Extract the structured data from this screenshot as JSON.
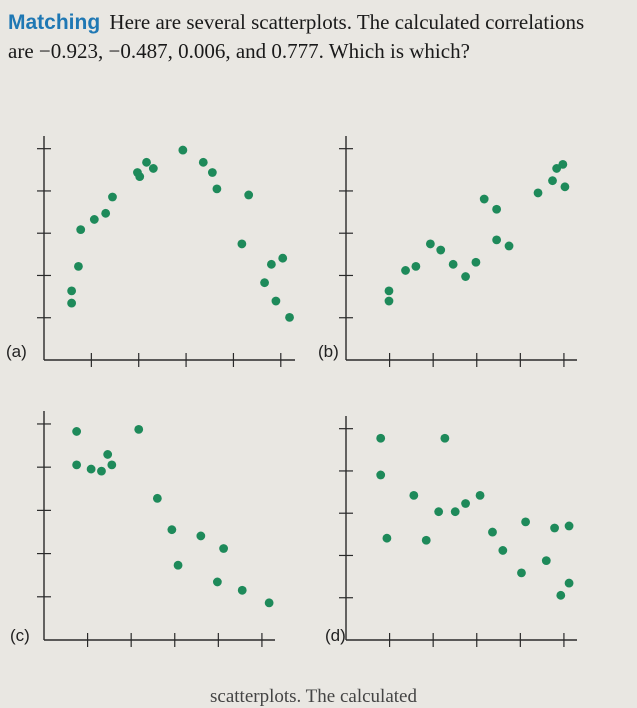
{
  "problem": {
    "lead": "Matching",
    "text": "Here are several scatterplots. The calculated correlations are −0.923, −0.487, 0.006, and 0.777. Which is which?"
  },
  "footer": {
    "text": "scatterplots. The calculated"
  },
  "colors": {
    "accent": "#1f78b4",
    "point": "#1e8a5a",
    "axis": "#2a2a2a"
  },
  "chart_data": [
    {
      "type": "scatter",
      "label": "(a)",
      "xlim": [
        0,
        10
      ],
      "ylim": [
        0,
        10
      ],
      "points": [
        [
          0.6,
          2.3
        ],
        [
          0.6,
          2.9
        ],
        [
          0.9,
          4.1
        ],
        [
          1.0,
          5.9
        ],
        [
          1.6,
          6.4
        ],
        [
          2.1,
          6.7
        ],
        [
          2.4,
          7.5
        ],
        [
          3.5,
          8.7
        ],
        [
          3.6,
          8.5
        ],
        [
          3.9,
          9.2
        ],
        [
          4.2,
          8.9
        ],
        [
          5.5,
          9.8
        ],
        [
          6.4,
          9.2
        ],
        [
          6.8,
          8.7
        ],
        [
          7.0,
          7.9
        ],
        [
          8.4,
          7.6
        ],
        [
          8.1,
          5.2
        ],
        [
          9.4,
          4.2
        ],
        [
          9.9,
          4.5
        ],
        [
          9.1,
          3.3
        ],
        [
          9.6,
          2.4
        ],
        [
          10.2,
          1.6
        ]
      ]
    },
    {
      "type": "scatter",
      "label": "(b)",
      "xlim": [
        0,
        10
      ],
      "ylim": [
        0,
        10
      ],
      "points": [
        [
          1.4,
          2.4
        ],
        [
          1.4,
          2.9
        ],
        [
          2.2,
          3.9
        ],
        [
          2.7,
          4.1
        ],
        [
          3.4,
          5.2
        ],
        [
          3.9,
          4.9
        ],
        [
          4.5,
          4.2
        ],
        [
          5.1,
          3.6
        ],
        [
          5.6,
          4.3
        ],
        [
          6.6,
          6.9
        ],
        [
          6.6,
          5.4
        ],
        [
          7.2,
          5.1
        ],
        [
          6.0,
          7.4
        ],
        [
          8.6,
          7.7
        ],
        [
          9.5,
          8.9
        ],
        [
          9.3,
          8.3
        ],
        [
          9.8,
          9.1
        ],
        [
          9.9,
          8.0
        ]
      ]
    },
    {
      "type": "scatter",
      "label": "(c)",
      "xlim": [
        0,
        10
      ],
      "ylim": [
        0,
        10
      ],
      "points": [
        [
          0.9,
          9.5
        ],
        [
          0.9,
          7.9
        ],
        [
          1.6,
          7.7
        ],
        [
          2.1,
          7.6
        ],
        [
          2.6,
          7.9
        ],
        [
          2.4,
          8.4
        ],
        [
          3.9,
          9.6
        ],
        [
          4.8,
          6.3
        ],
        [
          5.5,
          4.8
        ],
        [
          5.8,
          3.1
        ],
        [
          6.9,
          4.5
        ],
        [
          7.7,
          2.3
        ],
        [
          8.0,
          3.9
        ],
        [
          8.9,
          1.9
        ],
        [
          10.2,
          1.3
        ]
      ]
    },
    {
      "type": "scatter",
      "label": "(d)",
      "xlim": [
        0,
        10
      ],
      "ylim": [
        0,
        10
      ],
      "points": [
        [
          1.0,
          9.4
        ],
        [
          1.0,
          7.6
        ],
        [
          1.3,
          4.5
        ],
        [
          2.6,
          6.6
        ],
        [
          3.2,
          4.4
        ],
        [
          3.8,
          5.8
        ],
        [
          4.1,
          9.4
        ],
        [
          4.6,
          5.8
        ],
        [
          5.1,
          6.2
        ],
        [
          5.8,
          6.6
        ],
        [
          6.4,
          4.8
        ],
        [
          6.9,
          3.9
        ],
        [
          7.8,
          2.8
        ],
        [
          8.0,
          5.3
        ],
        [
          9.0,
          3.4
        ],
        [
          9.4,
          5.0
        ],
        [
          9.7,
          1.7
        ],
        [
          10.1,
          2.3
        ],
        [
          10.1,
          5.1
        ]
      ]
    }
  ]
}
